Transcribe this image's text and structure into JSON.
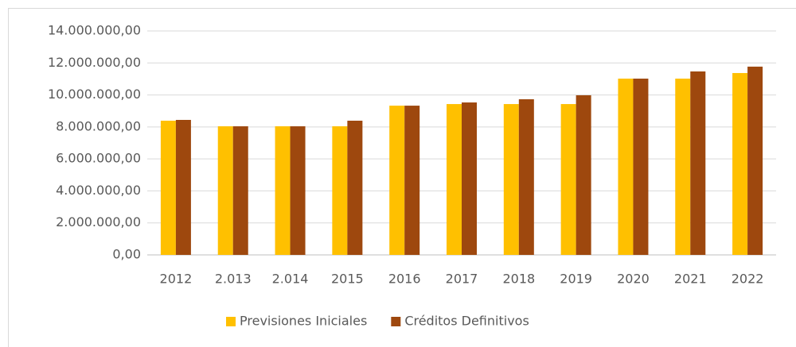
{
  "chart_data": {
    "type": "bar",
    "categories": [
      "2012",
      "2.013",
      "2.014",
      "2015",
      "2016",
      "2017",
      "2018",
      "2019",
      "2020",
      "2021",
      "2022"
    ],
    "series": [
      {
        "name": "Previsiones Iniciales",
        "color": "#FFC000",
        "values": [
          8390000,
          8040000,
          8040000,
          8040000,
          9330000,
          9430000,
          9430000,
          9430000,
          11020000,
          11020000,
          11370000
        ]
      },
      {
        "name": "Créditos Definitivos",
        "color": "#9E480E",
        "values": [
          8440000,
          8040000,
          8040000,
          8390000,
          9330000,
          9530000,
          9730000,
          9980000,
          11020000,
          11470000,
          11770000
        ]
      }
    ],
    "ylim": [
      0,
      14000000
    ],
    "yticks": [
      {
        "value": 0,
        "label": "0,00"
      },
      {
        "value": 2000000,
        "label": "2.000.000,00"
      },
      {
        "value": 4000000,
        "label": "4.000.000,00"
      },
      {
        "value": 6000000,
        "label": "6.000.000,00"
      },
      {
        "value": 8000000,
        "label": "8.000.000,00"
      },
      {
        "value": 10000000,
        "label": "10.000.000,00"
      },
      {
        "value": 12000000,
        "label": "12.000.000,00"
      },
      {
        "value": 14000000,
        "label": "14.000.000,00"
      }
    ],
    "grid": true,
    "legend": "bottom"
  }
}
